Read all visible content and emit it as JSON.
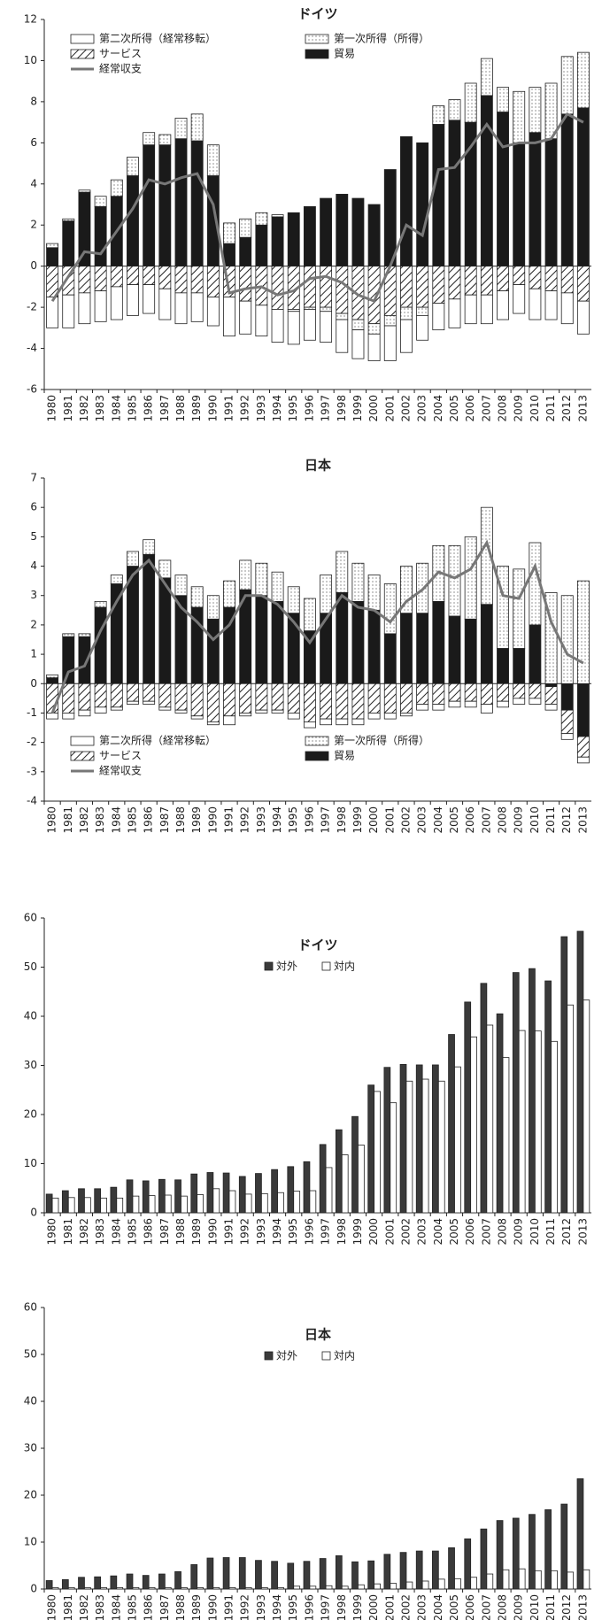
{
  "chart_data": [
    {
      "type": "bar",
      "stacked": true,
      "title": "ドイツ",
      "legend": "top",
      "categories": [
        "1980",
        "1981",
        "1982",
        "1983",
        "1984",
        "1985",
        "1986",
        "1987",
        "1988",
        "1989",
        "1990",
        "1991",
        "1992",
        "1993",
        "1994",
        "1995",
        "1996",
        "1997",
        "1998",
        "1999",
        "2000",
        "2001",
        "2002",
        "2003",
        "2004",
        "2005",
        "2006",
        "2007",
        "2008",
        "2009",
        "2010",
        "2011",
        "2012",
        "2013"
      ],
      "ylim": [
        -6,
        12
      ],
      "yticks": [
        -6,
        -4,
        -2,
        0,
        2,
        4,
        6,
        8,
        10,
        12
      ],
      "series": [
        {
          "name": "貿易",
          "color": "#1a1a1a",
          "pattern": "solid",
          "values": [
            0.9,
            2.2,
            3.6,
            2.9,
            3.4,
            4.4,
            5.9,
            5.9,
            6.2,
            6.1,
            4.4,
            1.1,
            1.4,
            2.0,
            2.4,
            2.6,
            2.9,
            3.3,
            3.5,
            3.3,
            3.0,
            4.7,
            6.3,
            6.0,
            6.9,
            7.1,
            7.0,
            8.3,
            7.5,
            6.0,
            6.5,
            6.2,
            7.4,
            7.7
          ]
        },
        {
          "name": "サービス",
          "color": "#333333",
          "pattern": "hatch",
          "values": [
            -1.5,
            -1.4,
            -1.3,
            -1.2,
            -1.0,
            -0.9,
            -0.9,
            -1.1,
            -1.3,
            -1.3,
            -1.5,
            -1.5,
            -1.7,
            -1.9,
            -2.1,
            -2.1,
            -2.0,
            -2.0,
            -2.3,
            -2.6,
            -2.8,
            -2.4,
            -2.0,
            -2.0,
            -1.8,
            -1.6,
            -1.4,
            -1.4,
            -1.2,
            -0.9,
            -1.1,
            -1.2,
            -1.3,
            -1.7
          ]
        },
        {
          "name": "第一次所得（所得）",
          "color": "#555555",
          "pattern": "dots",
          "values": [
            0.2,
            0.1,
            0.1,
            0.5,
            0.8,
            0.9,
            0.6,
            0.5,
            1.0,
            1.3,
            1.5,
            1.0,
            0.9,
            0.6,
            0.1,
            -0.1,
            -0.1,
            -0.2,
            -0.3,
            -0.5,
            -0.5,
            -0.5,
            -0.6,
            -0.4,
            0.9,
            1.0,
            1.9,
            1.8,
            1.2,
            2.5,
            2.2,
            2.7,
            2.8,
            2.7
          ]
        },
        {
          "name": "第二次所得（経常移転）",
          "color": "#ffffff",
          "pattern": "none",
          "values": [
            -1.5,
            -1.6,
            -1.5,
            -1.5,
            -1.6,
            -1.5,
            -1.4,
            -1.5,
            -1.5,
            -1.4,
            -1.4,
            -1.9,
            -1.6,
            -1.5,
            -1.6,
            -1.6,
            -1.5,
            -1.5,
            -1.6,
            -1.4,
            -1.3,
            -1.7,
            -1.6,
            -1.2,
            -1.3,
            -1.4,
            -1.4,
            -1.4,
            -1.4,
            -1.4,
            -1.5,
            -1.4,
            -1.5,
            -1.6
          ]
        },
        {
          "name": "経常収支",
          "type": "line",
          "color": "#777777",
          "values": [
            -1.7,
            -0.5,
            0.7,
            0.6,
            1.7,
            2.8,
            4.2,
            4.0,
            4.3,
            4.5,
            3.0,
            -1.3,
            -1.1,
            -1.0,
            -1.4,
            -1.2,
            -0.6,
            -0.5,
            -0.8,
            -1.4,
            -1.7,
            0.0,
            2.0,
            1.5,
            4.7,
            4.8,
            5.8,
            6.9,
            5.8,
            6.0,
            6.0,
            6.2,
            7.4,
            7.0
          ]
        }
      ]
    },
    {
      "type": "bar",
      "stacked": true,
      "title": "日本",
      "legend": "bottom",
      "categories": [
        "1980",
        "1981",
        "1982",
        "1983",
        "1984",
        "1985",
        "1986",
        "1987",
        "1988",
        "1989",
        "1990",
        "1991",
        "1992",
        "1993",
        "1994",
        "1995",
        "1996",
        "1997",
        "1998",
        "1999",
        "2000",
        "2001",
        "2002",
        "2003",
        "2004",
        "2005",
        "2006",
        "2007",
        "2008",
        "2009",
        "2010",
        "2011",
        "2012",
        "2013"
      ],
      "ylim": [
        -4,
        7
      ],
      "yticks": [
        -4,
        -3,
        -2,
        -1,
        0,
        1,
        2,
        3,
        4,
        5,
        6,
        7
      ],
      "series": [
        {
          "name": "貿易",
          "color": "#1a1a1a",
          "pattern": "solid",
          "values": [
            0.2,
            1.6,
            1.6,
            2.6,
            3.4,
            4.0,
            4.4,
            3.6,
            3.0,
            2.6,
            2.2,
            2.6,
            3.2,
            3.0,
            2.8,
            2.4,
            1.8,
            2.4,
            3.1,
            2.8,
            2.5,
            1.7,
            2.4,
            2.4,
            2.8,
            2.3,
            2.2,
            2.7,
            1.2,
            1.2,
            2.0,
            -0.1,
            -0.9,
            -1.8
          ]
        },
        {
          "name": "サービス",
          "color": "#333333",
          "pattern": "hatch",
          "values": [
            -1.0,
            -1.0,
            -0.9,
            -0.8,
            -0.8,
            -0.6,
            -0.6,
            -0.8,
            -0.9,
            -1.1,
            -1.3,
            -1.1,
            -1.0,
            -0.9,
            -0.9,
            -1.0,
            -1.3,
            -1.2,
            -1.2,
            -1.2,
            -1.0,
            -1.0,
            -1.0,
            -0.7,
            -0.7,
            -0.6,
            -0.6,
            -0.7,
            -0.6,
            -0.5,
            -0.5,
            -0.6,
            -0.8,
            -0.7
          ]
        },
        {
          "name": "第一次所得（所得）",
          "color": "#555555",
          "pattern": "dots",
          "values": [
            0.1,
            0.1,
            0.1,
            0.2,
            0.3,
            0.5,
            0.5,
            0.6,
            0.7,
            0.7,
            0.8,
            0.9,
            1.0,
            1.1,
            1.0,
            0.9,
            1.1,
            1.3,
            1.4,
            1.3,
            1.2,
            1.7,
            1.6,
            1.7,
            1.9,
            2.4,
            2.8,
            3.3,
            2.8,
            2.7,
            2.8,
            3.1,
            3.0,
            3.5
          ]
        },
        {
          "name": "第二次所得（経常移転）",
          "color": "#ffffff",
          "pattern": "none",
          "values": [
            -0.2,
            -0.2,
            -0.2,
            -0.2,
            -0.1,
            -0.1,
            -0.1,
            -0.1,
            -0.1,
            -0.1,
            -0.1,
            -0.3,
            -0.1,
            -0.1,
            -0.1,
            -0.2,
            -0.2,
            -0.2,
            -0.2,
            -0.2,
            -0.2,
            -0.2,
            -0.1,
            -0.2,
            -0.2,
            -0.2,
            -0.2,
            -0.3,
            -0.2,
            -0.2,
            -0.2,
            -0.2,
            -0.2,
            -0.2
          ]
        },
        {
          "name": "経常収支",
          "type": "line",
          "color": "#777777",
          "values": [
            -1.0,
            0.4,
            0.6,
            1.8,
            2.8,
            3.7,
            4.2,
            3.4,
            2.6,
            2.1,
            1.5,
            2.0,
            3.0,
            3.0,
            2.7,
            2.1,
            1.4,
            2.2,
            3.0,
            2.6,
            2.5,
            2.1,
            2.8,
            3.2,
            3.8,
            3.6,
            3.9,
            4.8,
            3.0,
            2.9,
            4.0,
            2.1,
            1.0,
            0.7
          ]
        }
      ]
    },
    {
      "type": "bar",
      "stacked": false,
      "title": "ドイツ",
      "legend": "top",
      "categories": [
        "1980",
        "1981",
        "1982",
        "1983",
        "1984",
        "1985",
        "1986",
        "1987",
        "1988",
        "1989",
        "1990",
        "1991",
        "1992",
        "1993",
        "1994",
        "1995",
        "1996",
        "1997",
        "1998",
        "1999",
        "2000",
        "2001",
        "2002",
        "2003",
        "2004",
        "2005",
        "2006",
        "2007",
        "2008",
        "2009",
        "2010",
        "2011",
        "2012",
        "2013"
      ],
      "ylim": [
        0,
        60
      ],
      "yticks": [
        0,
        10,
        20,
        30,
        40,
        50,
        60
      ],
      "series": [
        {
          "name": "対外",
          "color": "#3a3a3a",
          "values": [
            3.8,
            4.5,
            4.9,
            4.9,
            5.2,
            6.7,
            6.5,
            6.8,
            6.7,
            7.9,
            8.2,
            8.1,
            7.4,
            8.0,
            8.8,
            9.4,
            10.4,
            13.9,
            16.9,
            19.6,
            26.0,
            29.6,
            30.2,
            30.1,
            30.1,
            36.3,
            42.9,
            46.7,
            40.5,
            48.9,
            49.7,
            47.2,
            56.2,
            57.3
          ]
        },
        {
          "name": "対内",
          "color": "#ffffff",
          "values": [
            3.0,
            3.1,
            3.1,
            3.0,
            3.0,
            3.4,
            3.5,
            3.6,
            3.4,
            3.7,
            4.9,
            4.5,
            3.8,
            3.9,
            4.1,
            4.4,
            4.5,
            9.2,
            11.8,
            13.8,
            24.7,
            22.4,
            26.8,
            27.2,
            26.8,
            29.7,
            35.8,
            38.2,
            31.6,
            37.1,
            37.0,
            34.9,
            42.3,
            43.3
          ]
        }
      ]
    },
    {
      "type": "bar",
      "stacked": false,
      "title": "日本",
      "legend": "top",
      "categories": [
        "1980",
        "1981",
        "1982",
        "1983",
        "1984",
        "1985",
        "1986",
        "1987",
        "1988",
        "1989",
        "1990",
        "1991",
        "1992",
        "1993",
        "1994",
        "1995",
        "1996",
        "1997",
        "1998",
        "1999",
        "2000",
        "2001",
        "2002",
        "2003",
        "2004",
        "2005",
        "2006",
        "2007",
        "2008",
        "2009",
        "2010",
        "2011",
        "2012",
        "2013"
      ],
      "ylim": [
        0,
        60
      ],
      "yticks": [
        0,
        10,
        20,
        30,
        40,
        50,
        60
      ],
      "series": [
        {
          "name": "対外",
          "color": "#3a3a3a",
          "values": [
            1.8,
            2.0,
            2.5,
            2.6,
            2.8,
            3.2,
            2.9,
            3.2,
            3.7,
            5.2,
            6.6,
            6.7,
            6.7,
            6.1,
            5.9,
            5.5,
            5.9,
            6.5,
            7.1,
            5.8,
            6.0,
            7.4,
            7.8,
            8.1,
            8.1,
            8.8,
            10.7,
            12.8,
            14.6,
            15.1,
            15.9,
            16.9,
            18.1,
            23.5
          ]
        },
        {
          "name": "対内",
          "color": "#ffffff",
          "values": [
            0.3,
            0.3,
            0.3,
            0.3,
            0.3,
            0.3,
            0.3,
            0.3,
            0.3,
            0.3,
            0.3,
            0.3,
            0.3,
            0.3,
            0.3,
            0.6,
            0.6,
            0.7,
            0.6,
            0.9,
            1.1,
            1.2,
            1.5,
            1.7,
            2.1,
            2.2,
            2.5,
            3.2,
            4.1,
            4.3,
            3.9,
            3.9,
            3.6,
            4.1
          ]
        }
      ]
    }
  ]
}
